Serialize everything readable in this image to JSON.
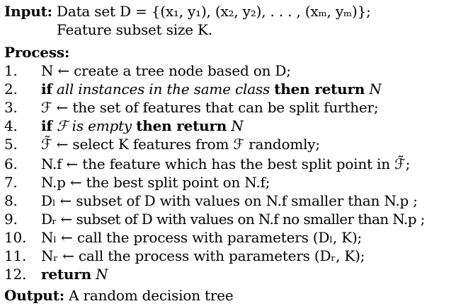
{
  "input_label": "Input:",
  "input_text": "Data set D = {(x₁, y₁), (x₂, y₂), . . . , (xₘ, yₘ)};",
  "input_text2": "Feature subset size K.",
  "process_label": "Process:",
  "steps": [
    {
      "num": "1.",
      "text": "N ← create a tree node based on D;"
    },
    {
      "num": "2.",
      "kw1": "if",
      "cond": "all instances in the same class",
      "kw2": "then return",
      "tail": "N"
    },
    {
      "num": "3.",
      "text": "ℱ ← the set of features that can be split further;"
    },
    {
      "num": "4.",
      "kw1": "if",
      "cond": "ℱ is empty",
      "kw2": "then return",
      "tail": "N"
    },
    {
      "num": "5.",
      "text": "ℱ̃ ← select K features from ℱ randomly;"
    },
    {
      "num": "6.",
      "text": "N.f ← the feature which has the best split point in ℱ̃;"
    },
    {
      "num": "7.",
      "text": "N.p ← the best split point on N.f;"
    },
    {
      "num": "8.",
      "text": "Dₗ ← subset of D with values on N.f smaller than N.p ;"
    },
    {
      "num": "9.",
      "text": "Dᵣ ← subset of D with values on N.f no smaller than N.p ;"
    },
    {
      "num": "10.",
      "text": "Nₗ ← call the process with parameters (Dₗ, K);"
    },
    {
      "num": "11.",
      "text": "Nᵣ ← call the process with parameters (Dᵣ, K);"
    },
    {
      "num": "12.",
      "kw1": "return",
      "tail": "N"
    }
  ],
  "output_label": "Output:",
  "output_text": "A random decision tree"
}
